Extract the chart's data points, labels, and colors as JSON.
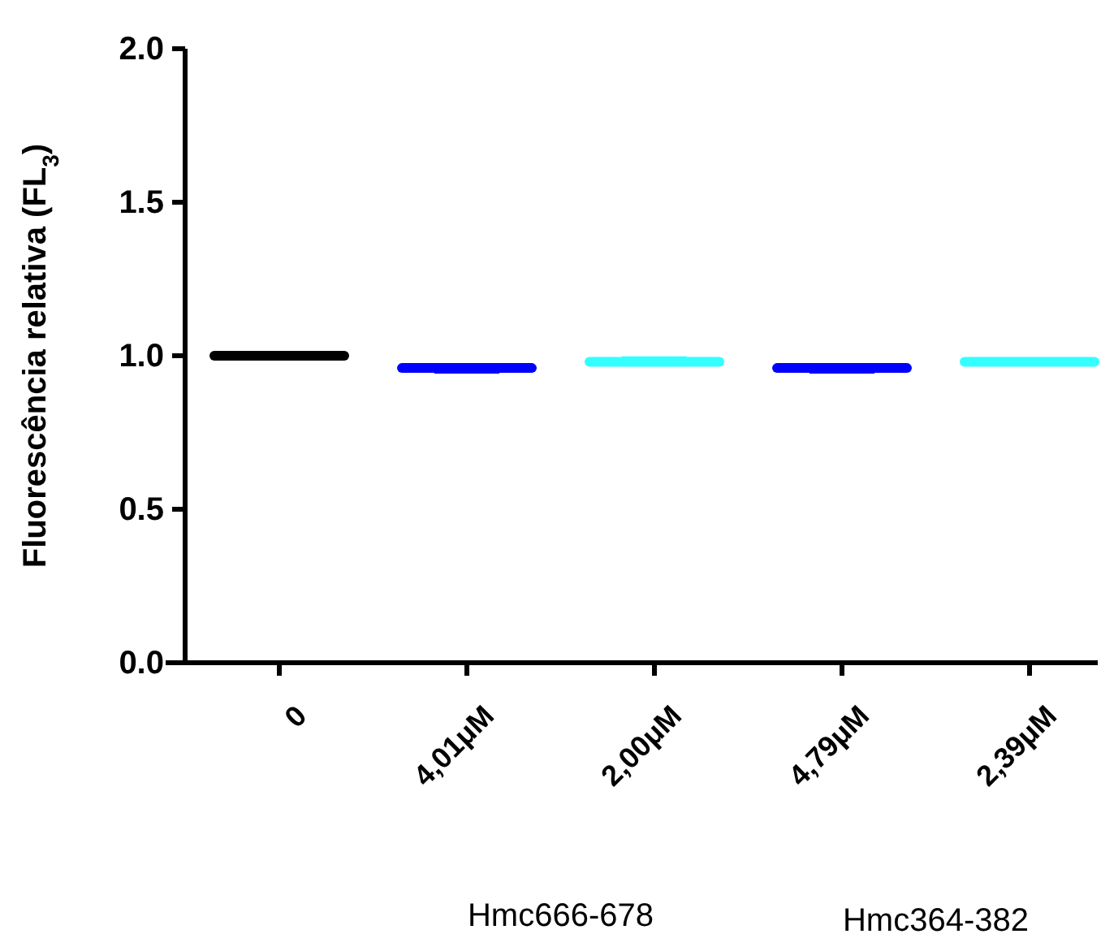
{
  "chart_data": {
    "type": "box",
    "ylabel": "Fluorescência relativa (FL$_{3}$)",
    "categories": [
      "0",
      "4,01μM",
      "2,00μM",
      "4,79μM",
      "2,39μM"
    ],
    "boxes": [
      {
        "low": 1.0,
        "q1": 1.0,
        "median": 1.0,
        "q3": 1.0,
        "high": 1.0
      },
      {
        "low": 0.95,
        "q1": 0.96,
        "median": 0.96,
        "q3": 0.96,
        "high": 0.96
      },
      {
        "low": 0.98,
        "q1": 0.98,
        "median": 0.98,
        "q3": 0.98,
        "high": 0.99
      },
      {
        "low": 0.95,
        "q1": 0.96,
        "median": 0.96,
        "q3": 0.96,
        "high": 0.96
      },
      {
        "low": 0.98,
        "q1": 0.98,
        "median": 0.98,
        "q3": 0.98,
        "high": 0.98
      }
    ],
    "colors": [
      "#000000",
      "#0000ff",
      "#33ffff",
      "#0000ff",
      "#33ffff"
    ],
    "ylim": [
      0,
      2
    ],
    "yticks": [
      {
        "value": 0,
        "label": "0.0"
      },
      {
        "value": 0.5,
        "label": "0.5"
      },
      {
        "value": 1,
        "label": "1.0"
      },
      {
        "value": 1.5,
        "label": "1.5"
      },
      {
        "value": 2,
        "label": "2.0"
      }
    ],
    "annotations": [
      "Hmc666-678",
      "Hmc364-382"
    ]
  }
}
